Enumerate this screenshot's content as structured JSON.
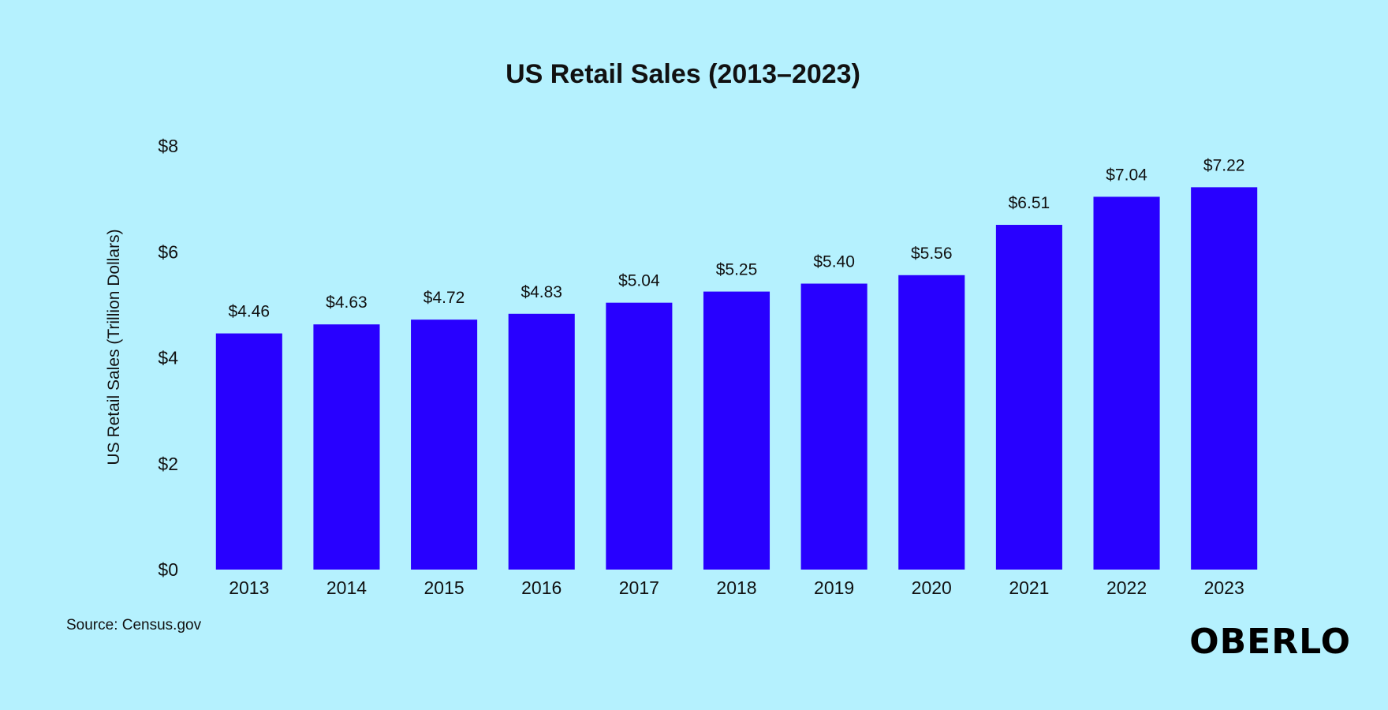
{
  "chart_data": {
    "type": "bar",
    "title": "US Retail Sales (2013–2023)",
    "ylabel": "US Retail Sales (Trillion Dollars)",
    "xlabel": "",
    "categories": [
      "2013",
      "2014",
      "2015",
      "2016",
      "2017",
      "2018",
      "2019",
      "2020",
      "2021",
      "2022",
      "2023"
    ],
    "values": [
      4.46,
      4.63,
      4.72,
      4.83,
      5.04,
      5.25,
      5.4,
      5.56,
      6.51,
      7.04,
      7.22
    ],
    "value_labels": [
      "$4.46",
      "$4.63",
      "$4.72",
      "$4.83",
      "$5.04",
      "$5.25",
      "$5.40",
      "$5.56",
      "$6.51",
      "$7.04",
      "$7.22"
    ],
    "ylim": [
      0,
      8
    ],
    "yticks": [
      0,
      2,
      4,
      6,
      8
    ],
    "ytick_labels": [
      "$0",
      "$2",
      "$4",
      "$6",
      "$8"
    ],
    "grid": false,
    "bar_color": "#2800ff"
  },
  "footer": {
    "source": "Source: Census.gov",
    "logo": "OBERLO"
  }
}
